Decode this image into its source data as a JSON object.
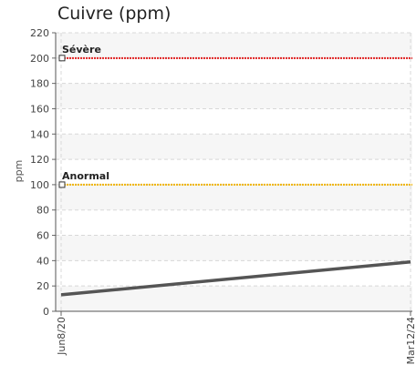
{
  "chart_data": {
    "type": "line",
    "title": "Cuivre (ppm)",
    "ylabel": "ppm",
    "xlabel": "",
    "ylim": [
      0,
      220
    ],
    "y_ticks": [
      0,
      20,
      40,
      60,
      80,
      100,
      120,
      140,
      160,
      180,
      200,
      220
    ],
    "x_ticks": [
      "Jun8/20",
      "Mar12/24"
    ],
    "grid": true,
    "series": [
      {
        "x": [
          "Jun8/20",
          "Mar12/24"
        ],
        "values": [
          13,
          39
        ],
        "color": "#555555"
      }
    ],
    "thresholds": [
      {
        "label": "Sévère",
        "value": 200,
        "color": "#e02020"
      },
      {
        "label": "Anormal",
        "value": 100,
        "color": "#f0b400"
      }
    ]
  }
}
